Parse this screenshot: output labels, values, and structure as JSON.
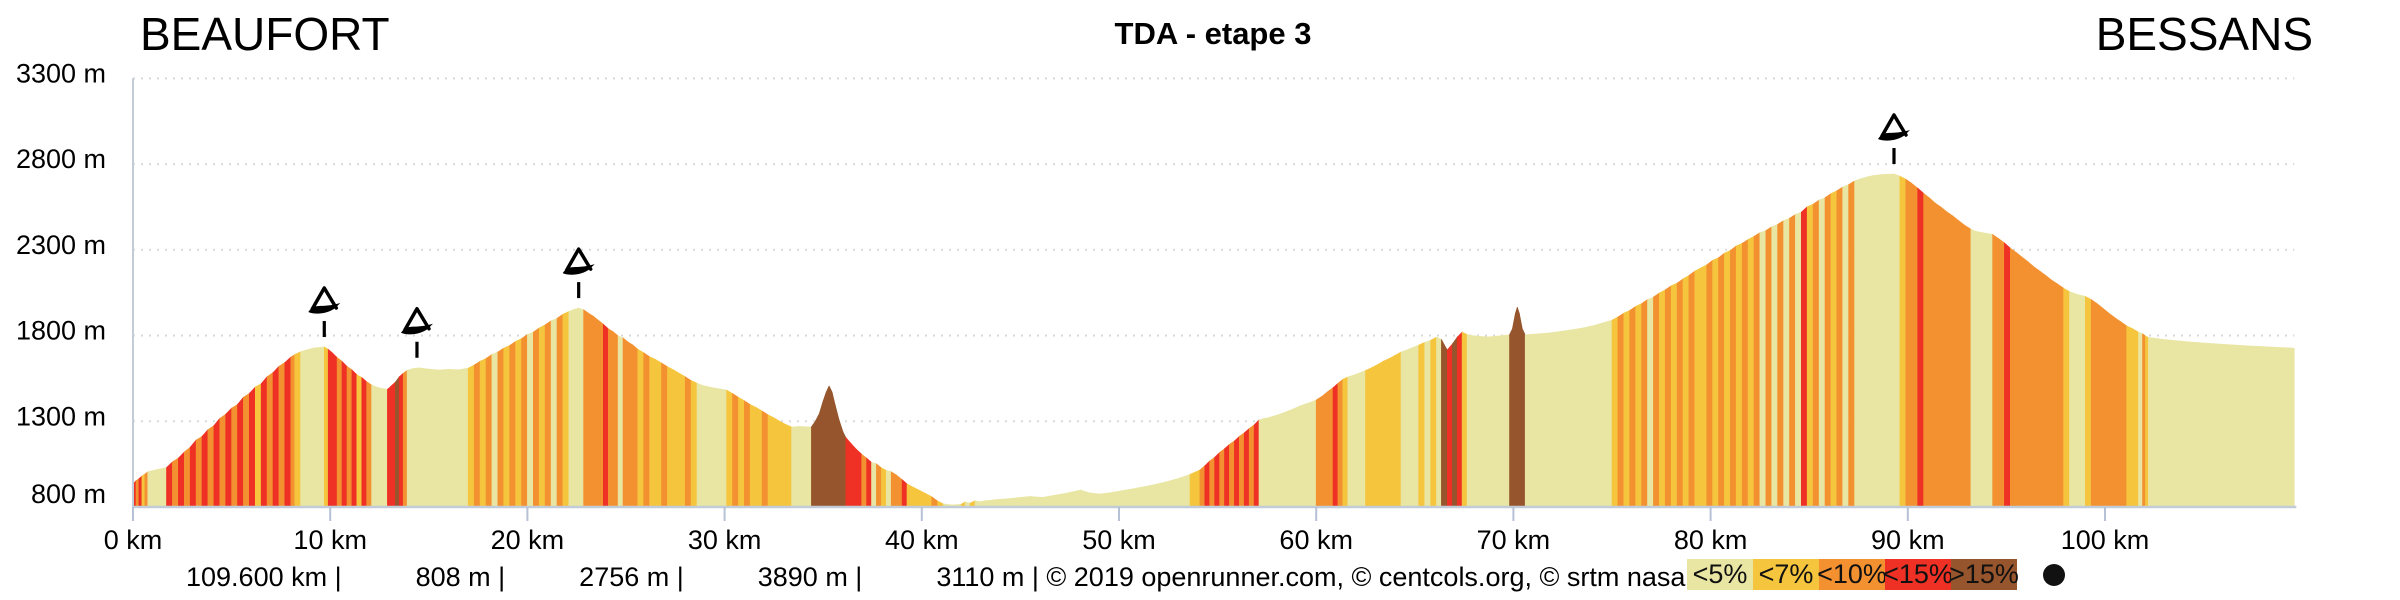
{
  "header": {
    "start_label": "BEAUFORT",
    "title": "TDA - etape 3",
    "end_label": "BESSANS"
  },
  "footer": {
    "stats": [
      "109.600 km |",
      "808 m |",
      "2756 m |",
      "3890 m |",
      "3110 m | © 2019 openrunner.com, © centcols.org, © srtm nasa"
    ]
  },
  "legend": {
    "dot_color": "#111111"
  },
  "colors": {
    "background": "#ffffff",
    "axis": "#c2cbd8",
    "tick": "#b6c1d6",
    "grid": "#dadada",
    "text": "#000000",
    "marker": "#000000"
  },
  "chart_data": {
    "type": "area",
    "title": "TDA - etape 3",
    "x_unit": "km",
    "y_unit": "m",
    "xlim": [
      0,
      109.6
    ],
    "ylim": [
      720,
      3380
    ],
    "grid": true,
    "legend_position": "bottom-right",
    "x_ticks": [
      {
        "km": 0,
        "label": "0 km"
      },
      {
        "km": 10,
        "label": "10 km"
      },
      {
        "km": 20,
        "label": "20 km"
      },
      {
        "km": 30,
        "label": "30 km"
      },
      {
        "km": 40,
        "label": "40 km"
      },
      {
        "km": 50,
        "label": "50 km"
      },
      {
        "km": 60,
        "label": "60 km"
      },
      {
        "km": 70,
        "label": "70 km"
      },
      {
        "km": 80,
        "label": "80 km"
      },
      {
        "km": 90,
        "label": "90 km"
      },
      {
        "km": 100,
        "label": "100 km"
      }
    ],
    "y_ticks": [
      {
        "elev": 800,
        "label": "800 m"
      },
      {
        "elev": 1300,
        "label": "1300 m"
      },
      {
        "elev": 1800,
        "label": "1800 m"
      },
      {
        "elev": 2300,
        "label": "2300 m"
      },
      {
        "elev": 2800,
        "label": "2800 m"
      },
      {
        "elev": 3300,
        "label": "3300 m"
      }
    ],
    "gradient_categories": [
      {
        "label": "<5%",
        "max_abs_grade": 5,
        "color": "#e9e6a3"
      },
      {
        "label": "<7%",
        "max_abs_grade": 7,
        "color": "#f5c53e"
      },
      {
        "label": "<10%",
        "max_abs_grade": 10,
        "color": "#f39130"
      },
      {
        "label": "<15%",
        "max_abs_grade": 15,
        "color": "#ee3124"
      },
      {
        "label": ">15%",
        "max_abs_grade": 100,
        "color": "#96552c"
      }
    ],
    "markers": [
      {
        "km": 9.7,
        "elev": 1733
      },
      {
        "km": 14.4,
        "elev": 1612
      },
      {
        "km": 22.6,
        "elev": 1960
      },
      {
        "km": 89.3,
        "elev": 2742
      }
    ],
    "profile": [
      [
        0,
        935
      ],
      [
        0.15,
        953
      ],
      [
        0.3,
        965
      ],
      [
        0.45,
        981
      ],
      [
        0.6,
        991
      ],
      [
        0.75,
        1005
      ],
      [
        1.2,
        1018
      ],
      [
        1.7,
        1030
      ],
      [
        2,
        1063
      ],
      [
        2.3,
        1085
      ],
      [
        2.6,
        1121
      ],
      [
        2.9,
        1149
      ],
      [
        3.2,
        1190
      ],
      [
        3.5,
        1212
      ],
      [
        3.8,
        1251
      ],
      [
        4.1,
        1275
      ],
      [
        4.4,
        1317
      ],
      [
        4.7,
        1341
      ],
      [
        5,
        1377
      ],
      [
        5.3,
        1398
      ],
      [
        5.6,
        1440
      ],
      [
        5.9,
        1462
      ],
      [
        6.2,
        1500
      ],
      [
        6.5,
        1519
      ],
      [
        6.8,
        1560
      ],
      [
        7.1,
        1584
      ],
      [
        7.4,
        1620
      ],
      [
        7.7,
        1642
      ],
      [
        8,
        1674
      ],
      [
        8.2,
        1688
      ],
      [
        8.5,
        1706
      ],
      [
        8.8,
        1716
      ],
      [
        9.2,
        1728
      ],
      [
        9.7,
        1733
      ],
      [
        9.9,
        1720
      ],
      [
        10.1,
        1700
      ],
      [
        10.35,
        1672
      ],
      [
        10.6,
        1650
      ],
      [
        10.85,
        1620
      ],
      [
        11.1,
        1600
      ],
      [
        11.35,
        1572
      ],
      [
        11.6,
        1555
      ],
      [
        11.85,
        1530
      ],
      [
        12.1,
        1512
      ],
      [
        12.35,
        1500
      ],
      [
        12.6,
        1492
      ],
      [
        12.9,
        1486
      ],
      [
        13.1,
        1506
      ],
      [
        13.3,
        1528
      ],
      [
        13.5,
        1559
      ],
      [
        13.7,
        1580
      ],
      [
        13.9,
        1596
      ],
      [
        14.15,
        1606
      ],
      [
        14.5,
        1612
      ],
      [
        15,
        1604
      ],
      [
        15.5,
        1599
      ],
      [
        16,
        1603
      ],
      [
        16.5,
        1600
      ],
      [
        17,
        1610
      ],
      [
        17.3,
        1628
      ],
      [
        17.6,
        1650
      ],
      [
        17.9,
        1666
      ],
      [
        18.2,
        1690
      ],
      [
        18.5,
        1704
      ],
      [
        18.8,
        1726
      ],
      [
        19.1,
        1742
      ],
      [
        19.4,
        1766
      ],
      [
        19.7,
        1782
      ],
      [
        20,
        1806
      ],
      [
        20.3,
        1820
      ],
      [
        20.6,
        1844
      ],
      [
        20.9,
        1862
      ],
      [
        21.2,
        1886
      ],
      [
        21.5,
        1900
      ],
      [
        21.8,
        1924
      ],
      [
        22.1,
        1940
      ],
      [
        22.35,
        1952
      ],
      [
        22.6,
        1960
      ],
      [
        22.85,
        1950
      ],
      [
        23.1,
        1930
      ],
      [
        23.35,
        1912
      ],
      [
        23.6,
        1888
      ],
      [
        23.85,
        1866
      ],
      [
        24.1,
        1840
      ],
      [
        24.35,
        1822
      ],
      [
        24.6,
        1798
      ],
      [
        24.85,
        1786
      ],
      [
        25.1,
        1762
      ],
      [
        25.35,
        1744
      ],
      [
        25.6,
        1720
      ],
      [
        25.9,
        1700
      ],
      [
        26.2,
        1676
      ],
      [
        26.5,
        1660
      ],
      [
        26.8,
        1640
      ],
      [
        27.1,
        1618
      ],
      [
        27.4,
        1600
      ],
      [
        27.7,
        1580
      ],
      [
        28,
        1560
      ],
      [
        28.3,
        1538
      ],
      [
        28.6,
        1522
      ],
      [
        28.9,
        1508
      ],
      [
        29.3,
        1498
      ],
      [
        29.7,
        1490
      ],
      [
        30.1,
        1482
      ],
      [
        30.4,
        1462
      ],
      [
        30.7,
        1440
      ],
      [
        31,
        1420
      ],
      [
        31.3,
        1398
      ],
      [
        31.6,
        1380
      ],
      [
        31.9,
        1360
      ],
      [
        32.2,
        1338
      ],
      [
        32.5,
        1320
      ],
      [
        32.8,
        1300
      ],
      [
        33.1,
        1282
      ],
      [
        33.4,
        1266
      ],
      [
        33.8,
        1270
      ],
      [
        34.1,
        1268
      ],
      [
        34.4,
        1267
      ],
      [
        34.6,
        1300
      ],
      [
        34.8,
        1345
      ],
      [
        35,
        1420
      ],
      [
        35.15,
        1470
      ],
      [
        35.3,
        1506
      ],
      [
        35.45,
        1470
      ],
      [
        35.6,
        1400
      ],
      [
        35.8,
        1310
      ],
      [
        36,
        1240
      ],
      [
        36.15,
        1205
      ],
      [
        36.45,
        1165
      ],
      [
        36.7,
        1135
      ],
      [
        36.95,
        1108
      ],
      [
        37.2,
        1085
      ],
      [
        37.45,
        1060
      ],
      [
        37.7,
        1052
      ],
      [
        37.95,
        1028
      ],
      [
        38.2,
        1014
      ],
      [
        38.45,
        1006
      ],
      [
        38.7,
        987
      ],
      [
        39,
        960
      ],
      [
        39.25,
        935
      ],
      [
        39.6,
        914
      ],
      [
        39.9,
        896
      ],
      [
        40.2,
        879
      ],
      [
        40.5,
        860
      ],
      [
        40.8,
        835
      ],
      [
        41.1,
        818
      ],
      [
        41.5,
        812
      ],
      [
        42,
        816
      ],
      [
        42.2,
        830
      ],
      [
        42.45,
        823
      ],
      [
        42.7,
        837
      ],
      [
        42.95,
        831
      ],
      [
        43.3,
        838
      ],
      [
        43.8,
        843
      ],
      [
        44.3,
        848
      ],
      [
        44.9,
        855
      ],
      [
        45.5,
        862
      ],
      [
        46.1,
        856
      ],
      [
        46.6,
        866
      ],
      [
        47.1,
        876
      ],
      [
        47.6,
        887
      ],
      [
        48.05,
        899
      ],
      [
        48.5,
        883
      ],
      [
        49,
        876
      ],
      [
        49.6,
        884
      ],
      [
        50.2,
        896
      ],
      [
        50.9,
        910
      ],
      [
        51.6,
        926
      ],
      [
        52.3,
        944
      ],
      [
        53,
        966
      ],
      [
        53.6,
        990
      ],
      [
        54.1,
        1016
      ],
      [
        54.35,
        1040
      ],
      [
        54.6,
        1068
      ],
      [
        54.85,
        1090
      ],
      [
        55.1,
        1118
      ],
      [
        55.35,
        1140
      ],
      [
        55.6,
        1165
      ],
      [
        55.85,
        1185
      ],
      [
        56.1,
        1212
      ],
      [
        56.35,
        1232
      ],
      [
        56.6,
        1258
      ],
      [
        56.85,
        1278
      ],
      [
        57.1,
        1308
      ],
      [
        57.35,
        1316
      ],
      [
        57.6,
        1322
      ],
      [
        58,
        1336
      ],
      [
        58.4,
        1352
      ],
      [
        58.8,
        1370
      ],
      [
        59.2,
        1390
      ],
      [
        59.6,
        1406
      ],
      [
        60,
        1424
      ],
      [
        60.3,
        1446
      ],
      [
        60.6,
        1474
      ],
      [
        60.85,
        1496
      ],
      [
        61.1,
        1521
      ],
      [
        61.35,
        1544
      ],
      [
        61.6,
        1558
      ],
      [
        61.9,
        1570
      ],
      [
        62.2,
        1582
      ],
      [
        62.5,
        1596
      ],
      [
        62.8,
        1612
      ],
      [
        63.1,
        1630
      ],
      [
        63.4,
        1650
      ],
      [
        63.7,
        1666
      ],
      [
        64,
        1684
      ],
      [
        64.3,
        1704
      ],
      [
        64.6,
        1716
      ],
      [
        64.9,
        1730
      ],
      [
        65.2,
        1744
      ],
      [
        65.5,
        1760
      ],
      [
        65.8,
        1772
      ],
      [
        66.1,
        1790
      ],
      [
        66.35,
        1778
      ],
      [
        66.5,
        1745
      ],
      [
        66.65,
        1716
      ],
      [
        66.9,
        1750
      ],
      [
        67.15,
        1790
      ],
      [
        67.4,
        1820
      ],
      [
        67.65,
        1806
      ],
      [
        67.9,
        1800
      ],
      [
        68.3,
        1795
      ],
      [
        68.7,
        1792
      ],
      [
        69.1,
        1796
      ],
      [
        69.5,
        1800
      ],
      [
        69.8,
        1804
      ],
      [
        69.95,
        1840
      ],
      [
        70.1,
        1930
      ],
      [
        70.2,
        1966
      ],
      [
        70.3,
        1930
      ],
      [
        70.45,
        1840
      ],
      [
        70.6,
        1804
      ],
      [
        71,
        1808
      ],
      [
        71.5,
        1812
      ],
      [
        72,
        1818
      ],
      [
        72.5,
        1826
      ],
      [
        73,
        1834
      ],
      [
        73.5,
        1844
      ],
      [
        74,
        1856
      ],
      [
        74.5,
        1872
      ],
      [
        75,
        1890
      ],
      [
        75.3,
        1908
      ],
      [
        75.6,
        1930
      ],
      [
        75.9,
        1946
      ],
      [
        76.2,
        1970
      ],
      [
        76.5,
        1986
      ],
      [
        76.8,
        2010
      ],
      [
        77.1,
        2024
      ],
      [
        77.4,
        2048
      ],
      [
        77.7,
        2066
      ],
      [
        78,
        2090
      ],
      [
        78.3,
        2106
      ],
      [
        78.6,
        2130
      ],
      [
        78.9,
        2150
      ],
      [
        79.2,
        2176
      ],
      [
        79.5,
        2194
      ],
      [
        79.8,
        2212
      ],
      [
        80.1,
        2238
      ],
      [
        80.4,
        2254
      ],
      [
        80.7,
        2280
      ],
      [
        81,
        2296
      ],
      [
        81.3,
        2322
      ],
      [
        81.6,
        2338
      ],
      [
        81.9,
        2360
      ],
      [
        82.2,
        2378
      ],
      [
        82.5,
        2400
      ],
      [
        82.8,
        2412
      ],
      [
        83.1,
        2434
      ],
      [
        83.4,
        2448
      ],
      [
        83.7,
        2470
      ],
      [
        84,
        2484
      ],
      [
        84.3,
        2506
      ],
      [
        84.6,
        2520
      ],
      [
        84.9,
        2551
      ],
      [
        85.2,
        2566
      ],
      [
        85.5,
        2590
      ],
      [
        85.8,
        2604
      ],
      [
        86.1,
        2628
      ],
      [
        86.4,
        2644
      ],
      [
        86.7,
        2666
      ],
      [
        87,
        2680
      ],
      [
        87.3,
        2702
      ],
      [
        87.6,
        2714
      ],
      [
        87.9,
        2724
      ],
      [
        88.2,
        2732
      ],
      [
        88.6,
        2738
      ],
      [
        89,
        2741
      ],
      [
        89.3,
        2742
      ],
      [
        89.6,
        2730
      ],
      [
        89.9,
        2712
      ],
      [
        90.2,
        2688
      ],
      [
        90.5,
        2660
      ],
      [
        90.8,
        2630
      ],
      [
        91.1,
        2602
      ],
      [
        91.4,
        2572
      ],
      [
        91.7,
        2548
      ],
      [
        92,
        2520
      ],
      [
        92.3,
        2496
      ],
      [
        92.6,
        2468
      ],
      [
        92.9,
        2442
      ],
      [
        93.2,
        2420
      ],
      [
        93.5,
        2406
      ],
      [
        93.9,
        2398
      ],
      [
        94.3,
        2390
      ],
      [
        94.6,
        2366
      ],
      [
        94.9,
        2340
      ],
      [
        95.2,
        2310
      ],
      [
        95.5,
        2284
      ],
      [
        95.8,
        2256
      ],
      [
        96.1,
        2230
      ],
      [
        96.4,
        2200
      ],
      [
        96.7,
        2176
      ],
      [
        97,
        2150
      ],
      [
        97.3,
        2122
      ],
      [
        97.6,
        2100
      ],
      [
        97.9,
        2076
      ],
      [
        98.2,
        2056
      ],
      [
        98.6,
        2040
      ],
      [
        99,
        2028
      ],
      [
        99.3,
        2010
      ],
      [
        99.6,
        1986
      ],
      [
        99.9,
        1958
      ],
      [
        100.2,
        1930
      ],
      [
        100.5,
        1904
      ],
      [
        100.8,
        1880
      ],
      [
        101.1,
        1856
      ],
      [
        101.4,
        1840
      ],
      [
        101.7,
        1820
      ],
      [
        101.9,
        1810
      ],
      [
        102.05,
        1798
      ],
      [
        102.2,
        1788
      ],
      [
        102.4,
        1786
      ],
      [
        102.8,
        1780
      ],
      [
        103.4,
        1772
      ],
      [
        104,
        1766
      ],
      [
        104.8,
        1758
      ],
      [
        105.6,
        1752
      ],
      [
        106.4,
        1746
      ],
      [
        107.2,
        1740
      ],
      [
        108,
        1736
      ],
      [
        108.8,
        1731
      ],
      [
        109.6,
        1727
      ]
    ]
  }
}
